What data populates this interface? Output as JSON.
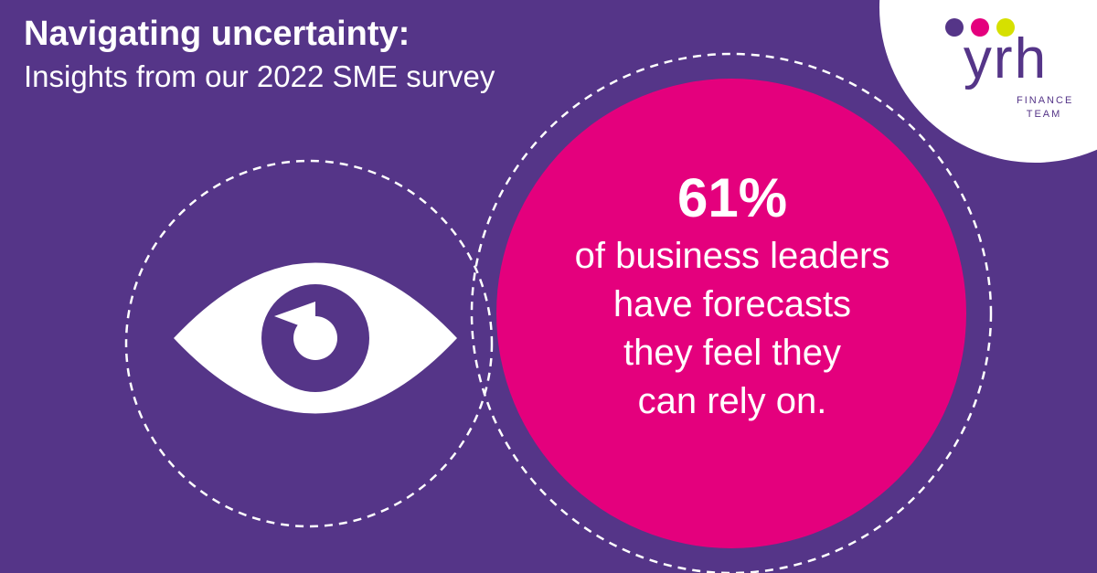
{
  "header": {
    "title": "Navigating uncertainty:",
    "subtitle": "Insights from our 2022 SME survey"
  },
  "stat": {
    "value": "61%",
    "lines": [
      "of business leaders",
      "have forecasts",
      "they feel they",
      "can rely on."
    ]
  },
  "logo": {
    "wordmark": "yrh",
    "tagline_1": "FINANCE",
    "tagline_2": "TEAM"
  },
  "icons": {
    "eye": "eye-icon"
  },
  "colors": {
    "background": "#553588",
    "accent_pink": "#e4007d",
    "white": "#ffffff",
    "logo_dot_purple": "#553588",
    "logo_dot_pink": "#e4007d",
    "logo_dot_yellow": "#d6e000"
  }
}
